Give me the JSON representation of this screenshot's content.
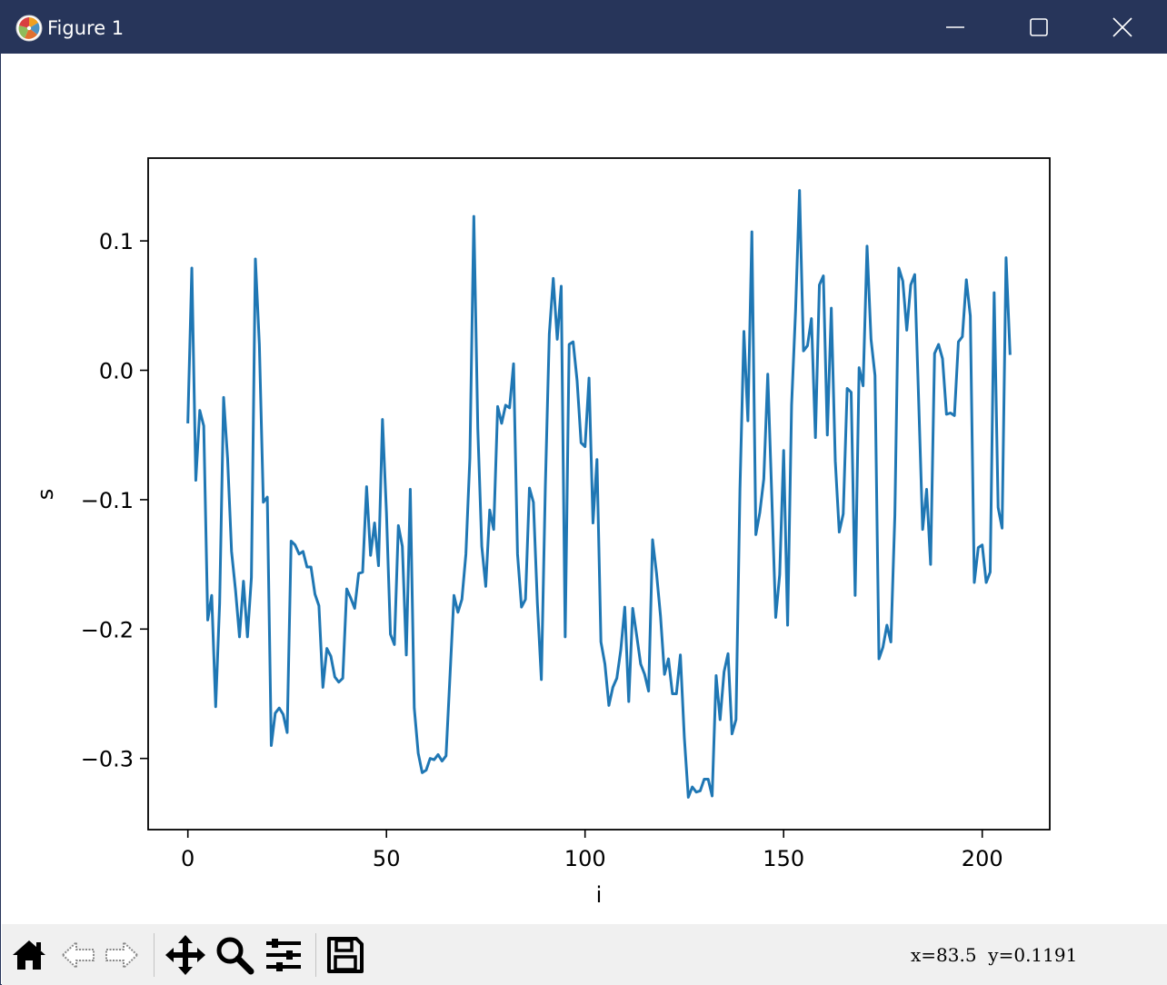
{
  "window": {
    "title": "Figure 1",
    "icon": "matplotlib-logo-icon",
    "controls": [
      "minimize-icon",
      "maximize-icon",
      "close-icon"
    ]
  },
  "toolbar": {
    "buttons": [
      {
        "name": "home-icon",
        "tooltip": "Reset original view"
      },
      {
        "name": "back-arrow-icon",
        "tooltip": "Back to previous view"
      },
      {
        "name": "forward-arrow-icon",
        "tooltip": "Forward to next view"
      },
      {
        "name": "pan-icon",
        "tooltip": "Pan axes"
      },
      {
        "name": "zoom-icon",
        "tooltip": "Zoom to rectangle"
      },
      {
        "name": "subplots-config-icon",
        "tooltip": "Configure subplots"
      },
      {
        "name": "save-icon",
        "tooltip": "Save the figure"
      }
    ],
    "coordinates": "x=83.5  y=0.1191"
  },
  "colors": {
    "titlebar": "#27355a",
    "line": "#1f77b4",
    "toolbar_bg": "#f0f0f0"
  },
  "chart_data": {
    "type": "line",
    "xlabel": "i",
    "ylabel": "s",
    "xlim": [
      -10,
      217
    ],
    "ylim": [
      -0.355,
      0.164
    ],
    "xticks": [
      0,
      50,
      100,
      150,
      200
    ],
    "xtick_labels": [
      "0",
      "50",
      "100",
      "150",
      "200"
    ],
    "yticks": [
      0.1,
      0.0,
      -0.1,
      -0.2,
      -0.3
    ],
    "ytick_labels": [
      "0.1",
      "0.0",
      "−0.1",
      "−0.2",
      "−0.3"
    ],
    "grid": false,
    "series": [
      {
        "color": "#1f77b4",
        "x_start": 0,
        "x_step": 1,
        "values": [
          -0.04,
          0.079,
          -0.085,
          -0.031,
          -0.043,
          -0.193,
          -0.174,
          -0.26,
          -0.18,
          -0.021,
          -0.068,
          -0.14,
          -0.17,
          -0.206,
          -0.163,
          -0.206,
          -0.16,
          0.086,
          0.02,
          -0.102,
          -0.098,
          -0.29,
          -0.265,
          -0.261,
          -0.266,
          -0.28,
          -0.132,
          -0.135,
          -0.142,
          -0.14,
          -0.152,
          -0.152,
          -0.173,
          -0.182,
          -0.245,
          -0.215,
          -0.221,
          -0.237,
          -0.241,
          -0.238,
          -0.169,
          -0.176,
          -0.184,
          -0.157,
          -0.156,
          -0.09,
          -0.143,
          -0.118,
          -0.151,
          -0.038,
          -0.11,
          -0.204,
          -0.212,
          -0.12,
          -0.136,
          -0.22,
          -0.092,
          -0.261,
          -0.296,
          -0.311,
          -0.309,
          -0.3,
          -0.301,
          -0.297,
          -0.302,
          -0.298,
          -0.236,
          -0.174,
          -0.187,
          -0.177,
          -0.142,
          -0.068,
          0.119,
          -0.045,
          -0.136,
          -0.167,
          -0.108,
          -0.123,
          -0.028,
          -0.041,
          -0.027,
          -0.029,
          0.005,
          -0.142,
          -0.183,
          -0.177,
          -0.091,
          -0.102,
          -0.18,
          -0.239,
          -0.09,
          0.028,
          0.071,
          0.024,
          0.065,
          -0.206,
          0.02,
          0.022,
          -0.008,
          -0.056,
          -0.059,
          -0.006,
          -0.118,
          -0.069,
          -0.21,
          -0.227,
          -0.259,
          -0.245,
          -0.238,
          -0.216,
          -0.183,
          -0.256,
          -0.184,
          -0.205,
          -0.227,
          -0.235,
          -0.248,
          -0.131,
          -0.157,
          -0.19,
          -0.235,
          -0.223,
          -0.25,
          -0.25,
          -0.22,
          -0.284,
          -0.33,
          -0.322,
          -0.326,
          -0.325,
          -0.316,
          -0.316,
          -0.329,
          -0.236,
          -0.27,
          -0.233,
          -0.219,
          -0.281,
          -0.27,
          -0.092,
          0.03,
          -0.039,
          0.107,
          -0.127,
          -0.11,
          -0.084,
          -0.003,
          -0.096,
          -0.191,
          -0.158,
          -0.062,
          -0.197,
          -0.027,
          0.046,
          0.139,
          0.015,
          0.019,
          0.04,
          -0.052,
          0.066,
          0.073,
          -0.05,
          0.048,
          -0.07,
          -0.125,
          -0.111,
          -0.014,
          -0.017,
          -0.174,
          0.002,
          -0.012,
          0.096,
          0.024,
          -0.004,
          -0.223,
          -0.214,
          -0.197,
          -0.21,
          -0.112,
          0.079,
          0.069,
          0.031,
          0.066,
          0.074,
          -0.024,
          -0.123,
          -0.092,
          -0.15,
          0.013,
          0.02,
          0.009,
          -0.034,
          -0.033,
          -0.035,
          0.022,
          0.026,
          0.07,
          0.042,
          -0.164,
          -0.137,
          -0.135,
          -0.164,
          -0.156,
          0.06,
          -0.106,
          -0.122,
          0.087,
          0.013
        ]
      }
    ]
  }
}
